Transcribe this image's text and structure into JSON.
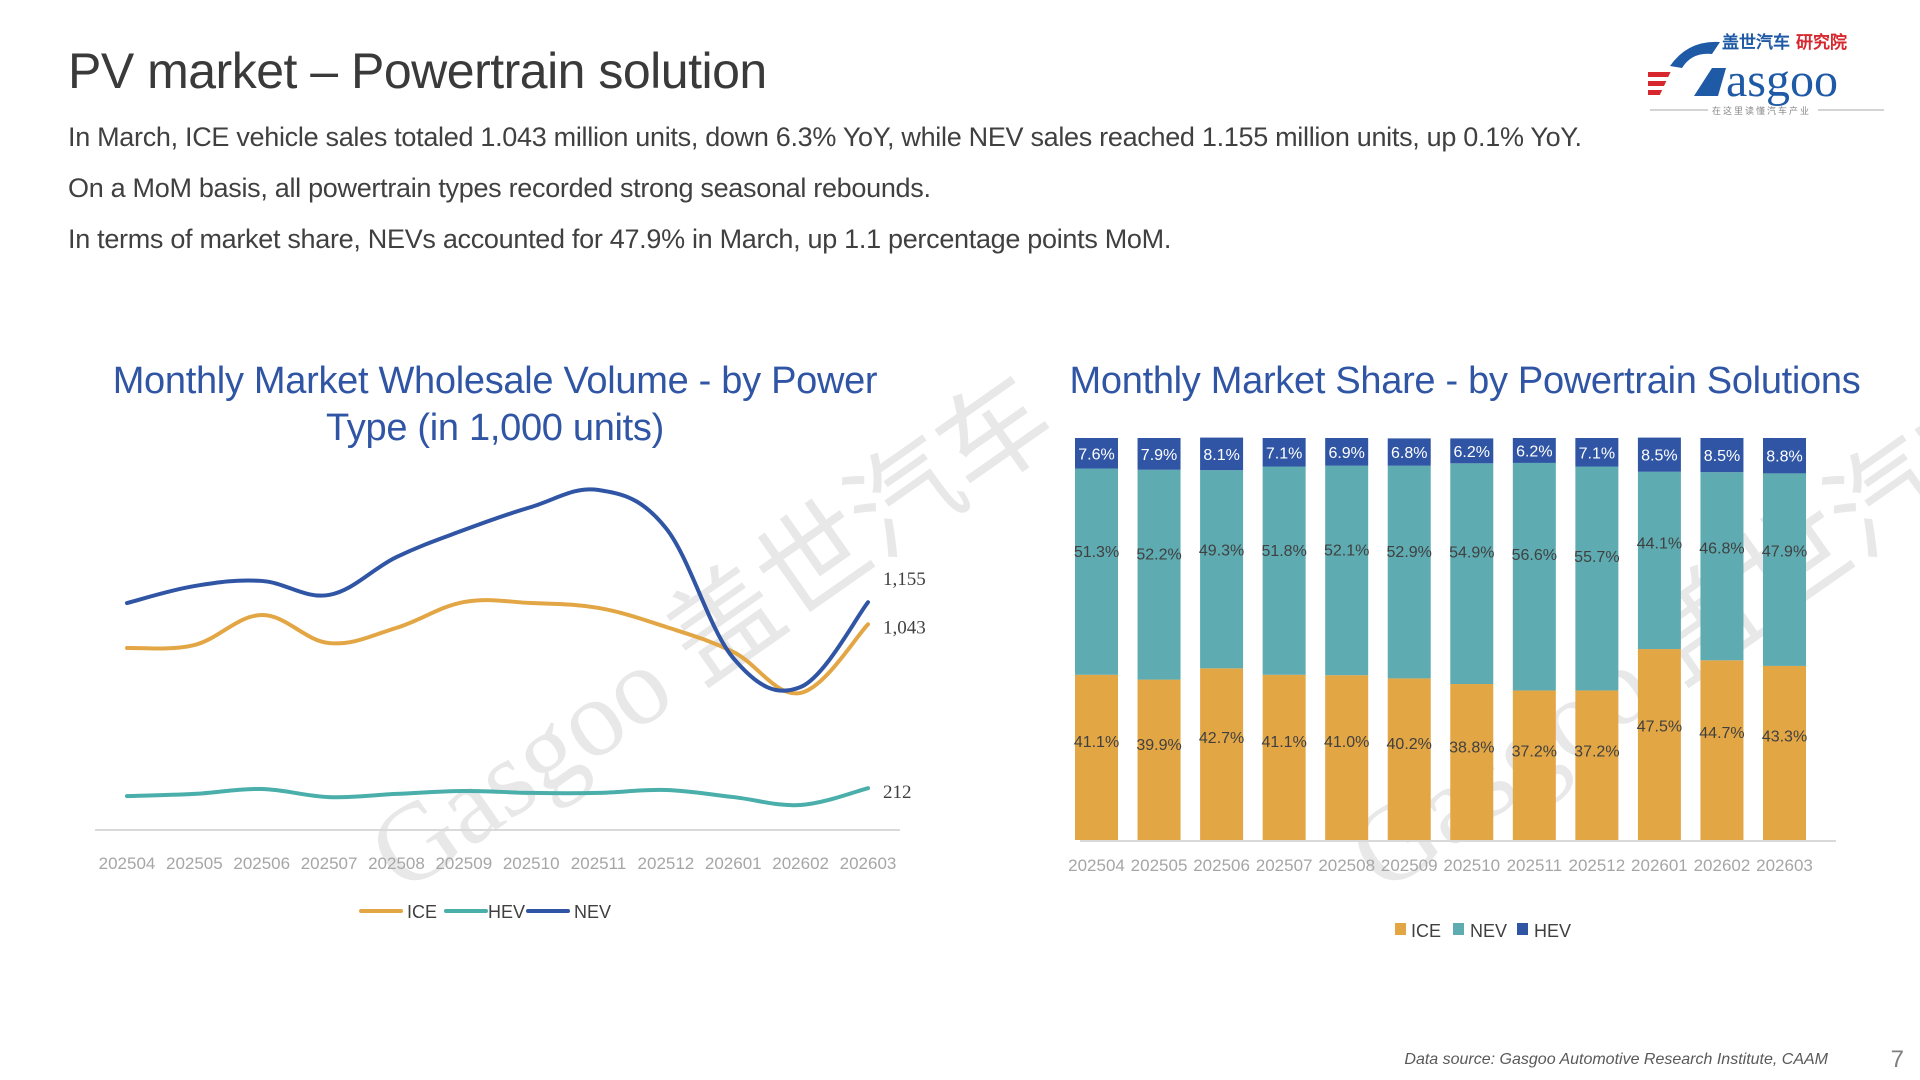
{
  "header": {
    "title": "PV market – Powertrain solution",
    "logo": {
      "brand": "Gasgoo",
      "chinese_name_primary": "盖世汽车",
      "chinese_name_secondary": "研究院",
      "tagline": "在这里读懂汽车产业",
      "colors": {
        "blue": "#1f5aa6",
        "red": "#d7282f"
      }
    }
  },
  "summary": [
    "In March, ICE vehicle sales totaled 1.043 million units, down 6.3% YoY, while NEV sales reached 1.155 million units, up 0.1% YoY.",
    "On a MoM basis, all powertrain types recorded strong seasonal rebounds.",
    "In terms of market share, NEVs accounted for 47.9% in March, up 1.1 percentage points MoM."
  ],
  "watermark": "Gasgoo 盖世汽车",
  "footer": {
    "source": "Data source: Gasgoo Automotive Research Institute, CAAM",
    "page_number": "7"
  },
  "colors": {
    "ICE": "#e3a645",
    "HEV": "#4aaeaa",
    "NEV": "#2f55a4",
    "NEV_share": "#5eabb1",
    "HEV_share": "#2f55a4",
    "title": "#2f55a4",
    "axis": "#d9d9d9"
  },
  "chart_data": [
    {
      "type": "line",
      "title": "Monthly Market Wholesale Volume - by Power Type (in 1,000 units)",
      "xlabel": "",
      "ylabel": "",
      "x": [
        "202504",
        "202505",
        "202506",
        "202507",
        "202508",
        "202509",
        "202510",
        "202511",
        "202512",
        "202601",
        "202602",
        "202603"
      ],
      "series": [
        {
          "name": "ICE",
          "values": [
            923,
            938,
            1090,
            948,
            1025,
            1156,
            1151,
            1126,
            1030,
            903,
            695,
            1043
          ],
          "end_label": "1,043"
        },
        {
          "name": "HEV",
          "values": [
            172,
            183,
            208,
            167,
            183,
            198,
            188,
            188,
            203,
            167,
            127,
            212
          ],
          "end_label": "212"
        },
        {
          "name": "NEV",
          "values": [
            1151,
            1237,
            1263,
            1192,
            1384,
            1521,
            1638,
            1724,
            1531,
            872,
            725,
            1155
          ],
          "end_label": "1,155"
        }
      ],
      "ylim": [
        0,
        1900
      ],
      "grid": false,
      "smooth": true,
      "legend": {
        "position": "bottom",
        "entries": [
          "ICE",
          "HEV",
          "NEV"
        ]
      }
    },
    {
      "type": "bar",
      "stacked": true,
      "title": "Monthly Market Share - by Powertrain Solutions",
      "xlabel": "",
      "ylabel": "",
      "categories": [
        "202504",
        "202505",
        "202506",
        "202507",
        "202508",
        "202509",
        "202510",
        "202511",
        "202512",
        "202601",
        "202602",
        "202603"
      ],
      "series": [
        {
          "name": "ICE",
          "values": [
            41.1,
            39.9,
            42.7,
            41.1,
            41.0,
            40.2,
            38.8,
            37.2,
            37.2,
            47.5,
            44.7,
            43.3
          ]
        },
        {
          "name": "NEV",
          "values": [
            51.3,
            52.2,
            49.3,
            51.8,
            52.1,
            52.9,
            54.9,
            56.6,
            55.7,
            44.1,
            46.8,
            47.9
          ]
        },
        {
          "name": "HEV",
          "values": [
            7.6,
            7.9,
            8.1,
            7.1,
            6.9,
            6.8,
            6.2,
            6.2,
            7.1,
            8.5,
            8.5,
            8.8
          ]
        }
      ],
      "unit": "%",
      "ylim": [
        0,
        100
      ],
      "grid": false,
      "legend": {
        "position": "bottom",
        "entries": [
          "ICE",
          "NEV",
          "HEV"
        ]
      }
    }
  ]
}
